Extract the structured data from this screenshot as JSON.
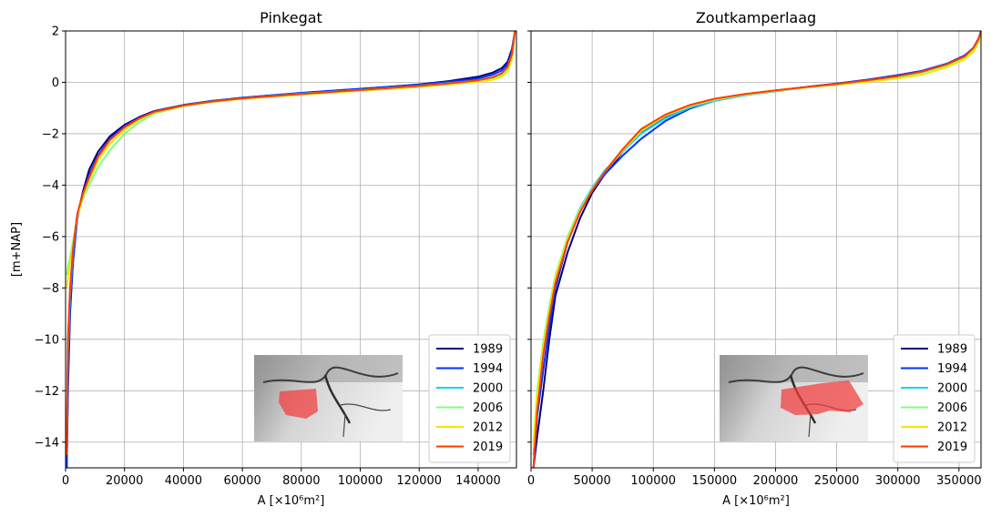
{
  "figure": {
    "ylabel": "[m+NAP]"
  },
  "chart_data": [
    {
      "type": "line",
      "title": "Pinkegat",
      "xlabel": "A [×10⁶m²]",
      "ylabel": "[m+NAP]",
      "xlim": [
        0,
        153000
      ],
      "ylim": [
        -15,
        2
      ],
      "xticks": [
        0,
        20000,
        40000,
        60000,
        80000,
        100000,
        120000,
        140000
      ],
      "xtick_labels": [
        "0",
        "20000",
        "40000",
        "60000",
        "80000",
        "100000",
        "120000",
        "140000"
      ],
      "yticks": [
        2,
        0,
        -2,
        -4,
        -6,
        -8,
        -10,
        -12,
        -14
      ],
      "ytick_labels": [
        "2",
        "0",
        "−2",
        "−4",
        "−6",
        "−8",
        "−10",
        "−12",
        "−14"
      ],
      "grid": true,
      "legend": "lower-right",
      "inset": "map with shaded basin",
      "series": [
        {
          "name": "1989",
          "color": "#00007f",
          "x": [
            400,
            800,
            1500,
            2500,
            4000,
            6000,
            8000,
            11000,
            15000,
            20000,
            25000,
            30000,
            40000,
            50000,
            60000,
            80000,
            100000,
            120000,
            130000,
            140000,
            145000,
            148000,
            150000,
            151500,
            152500
          ],
          "y": [
            -15,
            -12,
            -9,
            -7,
            -5.2,
            -4.2,
            -3.4,
            -2.7,
            -2.1,
            -1.65,
            -1.35,
            -1.12,
            -0.88,
            -0.72,
            -0.6,
            -0.42,
            -0.26,
            -0.08,
            0.05,
            0.22,
            0.38,
            0.55,
            0.8,
            1.3,
            2
          ]
        },
        {
          "name": "1994",
          "color": "#0033ff",
          "x": [
            400,
            800,
            1500,
            2500,
            4000,
            6000,
            8000,
            11000,
            15000,
            20000,
            25000,
            30000,
            40000,
            50000,
            60000,
            80000,
            100000,
            120000,
            130000,
            140000,
            145000,
            148000,
            150000,
            151500,
            152500
          ],
          "y": [
            -15,
            -11.5,
            -8.8,
            -7,
            -5.3,
            -4.3,
            -3.6,
            -2.85,
            -2.2,
            -1.7,
            -1.38,
            -1.14,
            -0.89,
            -0.72,
            -0.6,
            -0.41,
            -0.25,
            -0.1,
            0.02,
            0.15,
            0.3,
            0.46,
            0.7,
            1.2,
            2
          ]
        },
        {
          "name": "2000",
          "color": "#19d3e8",
          "x": [
            400,
            800,
            1500,
            2500,
            4000,
            6000,
            8000,
            11000,
            15000,
            20000,
            25000,
            30000,
            40000,
            50000,
            60000,
            80000,
            100000,
            120000,
            130000,
            140000,
            145000,
            148000,
            150000,
            151500,
            152500
          ],
          "y": [
            -14,
            -10.5,
            -8.2,
            -6.6,
            -5.2,
            -4.4,
            -3.8,
            -3.05,
            -2.4,
            -1.85,
            -1.45,
            -1.18,
            -0.9,
            -0.74,
            -0.62,
            -0.44,
            -0.29,
            -0.13,
            -0.03,
            0.08,
            0.2,
            0.36,
            0.6,
            1.1,
            2
          ]
        },
        {
          "name": "2006",
          "color": "#7fff7a",
          "x": [
            400,
            800,
            1500,
            2500,
            4000,
            6000,
            8000,
            11000,
            15000,
            20000,
            25000,
            30000,
            40000,
            50000,
            60000,
            80000,
            100000,
            120000,
            130000,
            140000,
            145000,
            148000,
            150000,
            151500,
            152500
          ],
          "y": [
            -7.5,
            -7.2,
            -6.8,
            -6.2,
            -5.2,
            -4.5,
            -4,
            -3.3,
            -2.65,
            -2,
            -1.55,
            -1.22,
            -0.93,
            -0.76,
            -0.64,
            -0.46,
            -0.3,
            -0.15,
            -0.05,
            0.05,
            0.15,
            0.3,
            0.5,
            1,
            2
          ]
        },
        {
          "name": "2012",
          "color": "#f4e600",
          "x": [
            400,
            800,
            1500,
            2500,
            4000,
            6000,
            8000,
            11000,
            15000,
            20000,
            25000,
            30000,
            40000,
            50000,
            60000,
            80000,
            100000,
            120000,
            130000,
            140000,
            145000,
            148000,
            150000,
            151500,
            152500
          ],
          "y": [
            -8,
            -7.6,
            -7,
            -6.4,
            -5.2,
            -4.4,
            -3.8,
            -3.05,
            -2.4,
            -1.85,
            -1.45,
            -1.17,
            -0.92,
            -0.76,
            -0.65,
            -0.48,
            -0.33,
            -0.18,
            -0.08,
            0.02,
            0.1,
            0.22,
            0.42,
            0.9,
            2
          ]
        },
        {
          "name": "2019",
          "color": "#ff3c00",
          "x": [
            400,
            800,
            1500,
            2500,
            4000,
            6000,
            8000,
            11000,
            15000,
            20000,
            25000,
            30000,
            40000,
            50000,
            60000,
            80000,
            100000,
            120000,
            130000,
            140000,
            145000,
            148000,
            150000,
            151500,
            152500
          ],
          "y": [
            -14.5,
            -10,
            -8,
            -6.5,
            -5.1,
            -4.3,
            -3.7,
            -2.9,
            -2.25,
            -1.75,
            -1.4,
            -1.15,
            -0.9,
            -0.74,
            -0.62,
            -0.45,
            -0.3,
            -0.14,
            -0.04,
            0.08,
            0.2,
            0.35,
            0.6,
            1.1,
            2
          ]
        }
      ]
    },
    {
      "type": "line",
      "title": "Zoutkamperlaag",
      "xlabel": "A [×10⁶m²]",
      "ylabel": "",
      "xlim": [
        0,
        368000
      ],
      "ylim": [
        -15,
        2
      ],
      "xticks": [
        0,
        50000,
        100000,
        150000,
        200000,
        250000,
        300000,
        350000
      ],
      "xtick_labels": [
        "0",
        "50000",
        "100000",
        "150000",
        "200000",
        "250000",
        "300000",
        "350000"
      ],
      "yticks": [
        2,
        0,
        -2,
        -4,
        -6,
        -8,
        -10,
        -12,
        -14
      ],
      "grid": true,
      "legend": "lower-right",
      "inset": "map with shaded basin",
      "series": [
        {
          "name": "1989",
          "color": "#00007f",
          "x": [
            2000,
            5000,
            10000,
            15000,
            20000,
            30000,
            40000,
            50000,
            60000,
            75000,
            90000,
            110000,
            130000,
            150000,
            175000,
            200000,
            225000,
            250000,
            275000,
            300000,
            320000,
            340000,
            355000,
            362000,
            366000,
            368000
          ],
          "y": [
            -15,
            -13.8,
            -12,
            -10,
            -8.3,
            -6.6,
            -5.3,
            -4.3,
            -3.6,
            -2.7,
            -1.95,
            -1.35,
            -0.95,
            -0.68,
            -0.48,
            -0.32,
            -0.18,
            -0.05,
            0.1,
            0.28,
            0.45,
            0.72,
            1.05,
            1.35,
            1.7,
            2
          ]
        },
        {
          "name": "1994",
          "color": "#0033ff",
          "x": [
            2000,
            5000,
            10000,
            15000,
            20000,
            30000,
            40000,
            50000,
            60000,
            75000,
            90000,
            110000,
            130000,
            150000,
            175000,
            200000,
            225000,
            250000,
            275000,
            300000,
            320000,
            340000,
            355000,
            362000,
            366000,
            368000
          ],
          "y": [
            -15,
            -13,
            -11.2,
            -9.5,
            -8,
            -6.2,
            -5,
            -4.2,
            -3.6,
            -2.85,
            -2.2,
            -1.5,
            -1.02,
            -0.72,
            -0.5,
            -0.33,
            -0.18,
            -0.05,
            0.1,
            0.28,
            0.45,
            0.72,
            1.05,
            1.35,
            1.7,
            2
          ]
        },
        {
          "name": "2000",
          "color": "#19d3e8",
          "x": [
            2000,
            5000,
            10000,
            15000,
            20000,
            30000,
            40000,
            50000,
            60000,
            75000,
            90000,
            110000,
            130000,
            150000,
            175000,
            200000,
            225000,
            250000,
            275000,
            300000,
            320000,
            340000,
            355000,
            362000,
            366000,
            368000
          ],
          "y": [
            -14.5,
            -12.5,
            -10.5,
            -9,
            -7.6,
            -6,
            -4.9,
            -4.1,
            -3.45,
            -2.7,
            -2,
            -1.4,
            -0.98,
            -0.72,
            -0.5,
            -0.35,
            -0.2,
            -0.08,
            0.06,
            0.22,
            0.4,
            0.68,
            1,
            1.3,
            1.65,
            2
          ]
        },
        {
          "name": "2006",
          "color": "#7fff7a",
          "x": [
            2000,
            5000,
            10000,
            15000,
            20000,
            30000,
            40000,
            50000,
            60000,
            75000,
            90000,
            110000,
            130000,
            150000,
            175000,
            200000,
            225000,
            250000,
            275000,
            300000,
            320000,
            340000,
            355000,
            362000,
            366000,
            368000
          ],
          "y": [
            -14,
            -12,
            -10.1,
            -8.7,
            -7.5,
            -6,
            -4.95,
            -4.15,
            -3.5,
            -2.65,
            -1.9,
            -1.3,
            -0.92,
            -0.68,
            -0.48,
            -0.33,
            -0.2,
            -0.08,
            0.05,
            0.2,
            0.38,
            0.65,
            0.95,
            1.25,
            1.6,
            2
          ]
        },
        {
          "name": "2012",
          "color": "#f4e600",
          "x": [
            2000,
            5000,
            10000,
            15000,
            20000,
            30000,
            40000,
            50000,
            60000,
            75000,
            90000,
            110000,
            130000,
            150000,
            175000,
            200000,
            225000,
            250000,
            275000,
            300000,
            320000,
            340000,
            355000,
            362000,
            366000,
            368000
          ],
          "y": [
            -14.2,
            -12.2,
            -10.3,
            -8.9,
            -7.6,
            -6.1,
            -5,
            -4.2,
            -3.5,
            -2.65,
            -1.88,
            -1.28,
            -0.9,
            -0.66,
            -0.47,
            -0.33,
            -0.2,
            -0.1,
            0.02,
            0.15,
            0.3,
            0.58,
            0.9,
            1.2,
            1.55,
            2
          ]
        },
        {
          "name": "2019",
          "color": "#ff3c00",
          "x": [
            2000,
            5000,
            10000,
            15000,
            20000,
            30000,
            40000,
            50000,
            60000,
            75000,
            90000,
            110000,
            130000,
            150000,
            175000,
            200000,
            225000,
            250000,
            275000,
            300000,
            320000,
            340000,
            355000,
            362000,
            366000,
            368000
          ],
          "y": [
            -15,
            -12.8,
            -10.6,
            -9.1,
            -7.8,
            -6.2,
            -5.05,
            -4.2,
            -3.5,
            -2.6,
            -1.82,
            -1.25,
            -0.88,
            -0.64,
            -0.45,
            -0.31,
            -0.18,
            -0.06,
            0.08,
            0.24,
            0.42,
            0.7,
            1.02,
            1.35,
            1.68,
            2
          ]
        }
      ]
    }
  ]
}
